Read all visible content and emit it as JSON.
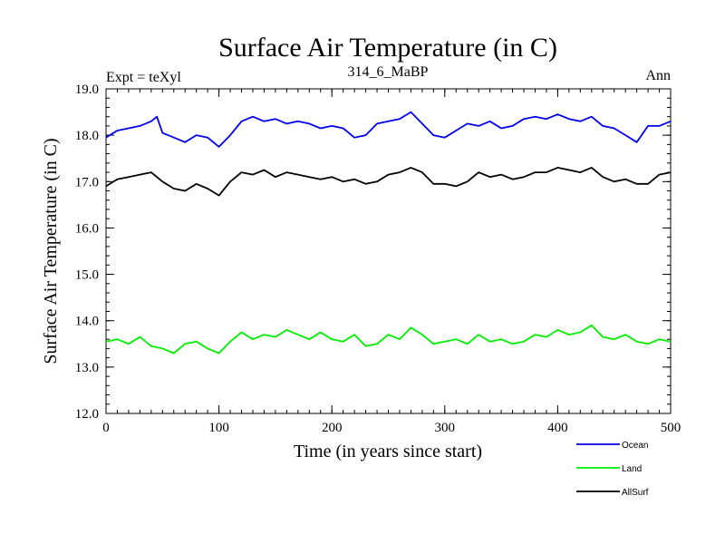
{
  "chart_data": {
    "type": "line",
    "title": "Surface Air Temperature (in C)",
    "subtitle": "314_6_MaBP",
    "left_label": "Expt = teXyl",
    "right_label": "Ann",
    "xlabel": "Time (in years since start)",
    "ylabel": "Surface Air Temperature (in C)",
    "xlim": [
      0,
      500
    ],
    "ylim": [
      12.0,
      19.0
    ],
    "x_ticks": [
      0,
      100,
      200,
      300,
      400,
      500
    ],
    "x_tick_labels": [
      "0",
      "100",
      "200",
      "300",
      "400",
      "500"
    ],
    "y_ticks": [
      12.0,
      13.0,
      14.0,
      15.0,
      16.0,
      17.0,
      18.0,
      19.0
    ],
    "y_tick_labels": [
      "12.0",
      "13.0",
      "14.0",
      "15.0",
      "16.0",
      "17.0",
      "18.0",
      "19.0"
    ],
    "grid": false,
    "legend_position": "bottom-right",
    "series": [
      {
        "name": "Ocean",
        "color": "#0000ee",
        "x": [
          0,
          10,
          20,
          30,
          40,
          45,
          50,
          60,
          70,
          80,
          90,
          100,
          110,
          120,
          130,
          140,
          150,
          160,
          170,
          180,
          190,
          200,
          210,
          220,
          230,
          240,
          250,
          260,
          270,
          280,
          290,
          300,
          310,
          320,
          330,
          340,
          350,
          360,
          370,
          380,
          390,
          400,
          410,
          420,
          430,
          440,
          450,
          460,
          470,
          480,
          490,
          500
        ],
        "values": [
          17.95,
          18.1,
          18.15,
          18.2,
          18.3,
          18.4,
          18.05,
          17.95,
          17.85,
          18.0,
          17.95,
          17.75,
          18.0,
          18.3,
          18.4,
          18.3,
          18.35,
          18.25,
          18.3,
          18.25,
          18.15,
          18.2,
          18.15,
          17.95,
          18.0,
          18.25,
          18.3,
          18.35,
          18.5,
          18.25,
          18.0,
          17.95,
          18.1,
          18.25,
          18.2,
          18.3,
          18.15,
          18.2,
          18.35,
          18.4,
          18.35,
          18.45,
          18.35,
          18.3,
          18.4,
          18.2,
          18.15,
          18.0,
          17.85,
          18.2,
          18.2,
          18.3
        ]
      },
      {
        "name": "Land",
        "color": "#00ee00",
        "x": [
          0,
          10,
          20,
          30,
          40,
          50,
          60,
          70,
          80,
          90,
          100,
          110,
          120,
          130,
          140,
          150,
          160,
          170,
          180,
          190,
          200,
          210,
          220,
          230,
          240,
          250,
          260,
          270,
          280,
          290,
          300,
          310,
          320,
          330,
          340,
          350,
          360,
          370,
          380,
          390,
          400,
          410,
          420,
          430,
          440,
          450,
          460,
          470,
          480,
          490,
          500
        ],
        "values": [
          13.55,
          13.6,
          13.5,
          13.65,
          13.45,
          13.4,
          13.3,
          13.5,
          13.55,
          13.4,
          13.3,
          13.55,
          13.75,
          13.6,
          13.7,
          13.65,
          13.8,
          13.7,
          13.6,
          13.75,
          13.6,
          13.55,
          13.7,
          13.45,
          13.5,
          13.7,
          13.6,
          13.85,
          13.7,
          13.5,
          13.55,
          13.6,
          13.5,
          13.7,
          13.55,
          13.6,
          13.5,
          13.55,
          13.7,
          13.65,
          13.8,
          13.7,
          13.75,
          13.9,
          13.65,
          13.6,
          13.7,
          13.55,
          13.5,
          13.6,
          13.55
        ]
      },
      {
        "name": "AllSurf",
        "color": "#000000",
        "x": [
          0,
          10,
          20,
          30,
          40,
          50,
          60,
          70,
          80,
          90,
          100,
          110,
          120,
          130,
          140,
          150,
          160,
          170,
          180,
          190,
          200,
          210,
          220,
          230,
          240,
          250,
          260,
          270,
          280,
          290,
          300,
          310,
          320,
          330,
          340,
          350,
          360,
          370,
          380,
          390,
          400,
          410,
          420,
          430,
          440,
          450,
          460,
          470,
          480,
          490,
          500
        ],
        "values": [
          16.9,
          17.05,
          17.1,
          17.15,
          17.2,
          17.0,
          16.85,
          16.8,
          16.95,
          16.85,
          16.7,
          17.0,
          17.2,
          17.15,
          17.25,
          17.1,
          17.2,
          17.15,
          17.1,
          17.05,
          17.1,
          17.0,
          17.05,
          16.95,
          17.0,
          17.15,
          17.2,
          17.3,
          17.2,
          16.95,
          16.95,
          16.9,
          17.0,
          17.2,
          17.1,
          17.15,
          17.05,
          17.1,
          17.2,
          17.2,
          17.3,
          17.25,
          17.2,
          17.3,
          17.1,
          17.0,
          17.05,
          16.95,
          16.95,
          17.15,
          17.2
        ]
      }
    ]
  }
}
